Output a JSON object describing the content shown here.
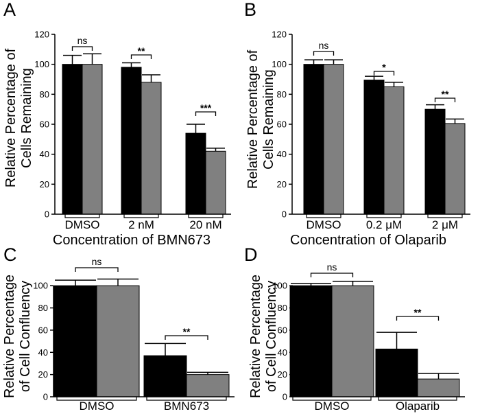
{
  "chart_data": [
    {
      "panel_label": "A",
      "type": "bar",
      "ylabel": [
        "Relative Percentage of",
        "Cells Remaining"
      ],
      "xlabel": "Concentration of BMN673",
      "ylim": [
        0,
        120
      ],
      "yticks": [
        0,
        20,
        40,
        60,
        80,
        100,
        120
      ],
      "categories": [
        "DMSO",
        "2 nM",
        "20 nM"
      ],
      "series": [
        {
          "name": "black",
          "color": "#000000",
          "values": [
            100,
            98,
            54
          ],
          "errors": [
            6,
            3,
            6
          ]
        },
        {
          "name": "gray",
          "color": "#808080",
          "values": [
            100,
            88,
            42
          ],
          "errors": [
            7,
            5,
            2
          ]
        }
      ],
      "significance": [
        "ns",
        "**",
        "***"
      ]
    },
    {
      "panel_label": "B",
      "type": "bar",
      "ylabel": [
        "Relative Percentage of",
        "Cells Remaining"
      ],
      "xlabel": "Concentration of Olaparib",
      "ylim": [
        0,
        120
      ],
      "yticks": [
        0,
        20,
        40,
        60,
        80,
        100,
        120
      ],
      "categories": [
        "DMSO",
        "0.2 μM",
        "2 μM"
      ],
      "series": [
        {
          "name": "black",
          "color": "#000000",
          "values": [
            100,
            89.5,
            70
          ],
          "errors": [
            3,
            2.5,
            3
          ]
        },
        {
          "name": "gray",
          "color": "#808080",
          "values": [
            100,
            85,
            60.5
          ],
          "errors": [
            3,
            3,
            3
          ]
        }
      ],
      "significance": [
        "ns",
        "*",
        "**"
      ]
    },
    {
      "panel_label": "C",
      "type": "bar",
      "ylabel": [
        "Relative Percentage",
        "of Cell Confluency"
      ],
      "xlabel": "",
      "ylim": [
        0,
        110
      ],
      "yticks": [
        0,
        20,
        40,
        60,
        80,
        100
      ],
      "categories": [
        "DMSO",
        "BMN673"
      ],
      "series": [
        {
          "name": "black",
          "color": "#000000",
          "values": [
            100,
            37
          ],
          "errors": [
            5,
            11
          ]
        },
        {
          "name": "gray",
          "color": "#808080",
          "values": [
            100,
            20
          ],
          "errors": [
            6,
            2
          ]
        }
      ],
      "significance": [
        "ns",
        "**"
      ]
    },
    {
      "panel_label": "D",
      "type": "bar",
      "ylabel": [
        "Relative Percentage",
        "of Cell Confluency"
      ],
      "xlabel": "",
      "ylim": [
        0,
        110
      ],
      "yticks": [
        0,
        20,
        40,
        60,
        80,
        100
      ],
      "categories": [
        "DMSO",
        "Olaparib"
      ],
      "series": [
        {
          "name": "black",
          "color": "#000000",
          "values": [
            100,
            43
          ],
          "errors": [
            2,
            15
          ]
        },
        {
          "name": "gray",
          "color": "#808080",
          "values": [
            100,
            16
          ],
          "errors": [
            4,
            5
          ]
        }
      ],
      "significance": [
        "ns",
        "**"
      ]
    }
  ]
}
